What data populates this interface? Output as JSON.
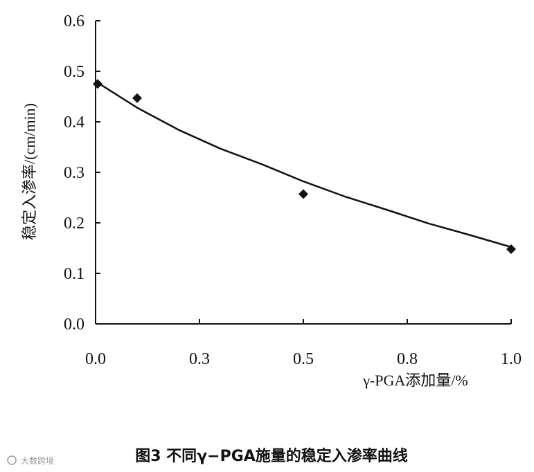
{
  "chart_data": {
    "type": "scatter",
    "title": "",
    "xlabel": "γ-PGA添加量/%",
    "ylabel": "稳定入渗率/(cm/min)",
    "xlim": [
      0.0,
      1.0
    ],
    "ylim": [
      0.0,
      0.6
    ],
    "x_ticks": [
      0.0,
      0.25,
      0.5,
      0.75,
      1.0
    ],
    "x_tick_labels": [
      "0.0",
      "0.3",
      "0.5",
      "0.8",
      "1.0"
    ],
    "y_ticks": [
      0.0,
      0.1,
      0.2,
      0.3,
      0.4,
      0.5,
      0.6
    ],
    "y_tick_labels": [
      "0.0",
      "0.1",
      "0.2",
      "0.3",
      "0.4",
      "0.5",
      "0.6"
    ],
    "grid": false,
    "legend": "none",
    "series": [
      {
        "marker": "diamond",
        "x": [
          0.005,
          0.1,
          0.5,
          1.0
        ],
        "y": [
          0.475,
          0.447,
          0.257,
          0.148
        ]
      }
    ],
    "trendline": {
      "x": [
        0.0,
        0.1,
        0.2,
        0.3,
        0.4,
        0.5,
        0.6,
        0.7,
        0.8,
        0.9,
        1.0
      ],
      "y": [
        0.48,
        0.428,
        0.384,
        0.347,
        0.316,
        0.282,
        0.252,
        0.226,
        0.199,
        0.176,
        0.152
      ]
    }
  },
  "caption": "图3  不同γ−PGA施量的稳定入渗率曲线",
  "watermark": "大数跨境",
  "colors": {
    "ink": "#111111",
    "watermark": "#9a9a9a"
  }
}
